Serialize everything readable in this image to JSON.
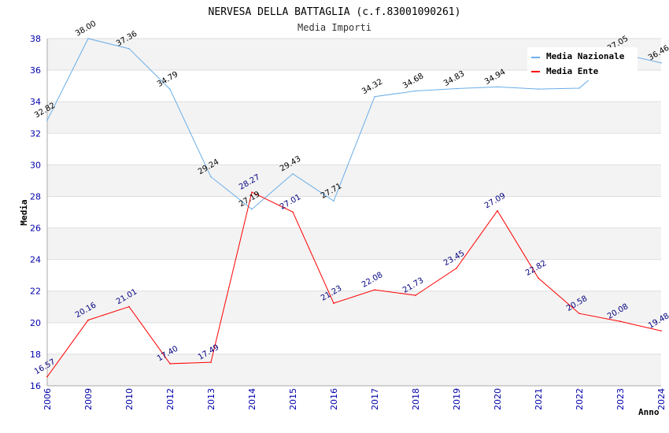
{
  "chart_data": {
    "type": "line",
    "title": "NERVESA DELLA BATTAGLIA (c.f.83001090261)",
    "subtitle": "Media Importi",
    "xlabel": "Anno",
    "ylabel": "Media",
    "categories": [
      "2006",
      "2009",
      "2010",
      "2012",
      "2013",
      "2014",
      "2015",
      "2016",
      "2017",
      "2018",
      "2019",
      "2020",
      "2021",
      "2022",
      "2023",
      "2024"
    ],
    "ylim": [
      16,
      38
    ],
    "yticks": [
      "16",
      "18",
      "20",
      "22",
      "24",
      "26",
      "28",
      "30",
      "32",
      "34",
      "36",
      "38"
    ],
    "series": [
      {
        "name": "Media Nazionale",
        "color": "#6aaee8",
        "label_color": "#000000",
        "values": [
          32.82,
          38.0,
          37.36,
          34.79,
          29.24,
          27.19,
          29.43,
          27.71,
          34.32,
          34.68,
          34.83,
          34.94,
          34.8,
          34.86,
          37.05,
          36.46
        ],
        "labels": [
          "32.82",
          "38.00",
          "37.36",
          "34.79",
          "29.24",
          "27.19",
          "29.43",
          "27.71",
          "34.32",
          "34.68",
          "34.83",
          "34.94",
          "",
          "",
          "37.05",
          "36.46"
        ]
      },
      {
        "name": "Media Ente",
        "color": "#ff0000",
        "label_color": "#00007f",
        "values": [
          16.57,
          20.16,
          21.01,
          17.4,
          17.49,
          28.27,
          27.01,
          21.23,
          22.08,
          21.73,
          23.45,
          27.09,
          22.82,
          20.58,
          20.08,
          19.48
        ],
        "labels": [
          "16.57",
          "20.16",
          "21.01",
          "17.40",
          "17.49",
          "28.27",
          "27.01",
          "21.23",
          "22.08",
          "21.73",
          "23.45",
          "27.09",
          "22.82",
          "20.58",
          "20.08",
          "19.48"
        ]
      }
    ],
    "legend_position": "top-right",
    "grid": true
  }
}
